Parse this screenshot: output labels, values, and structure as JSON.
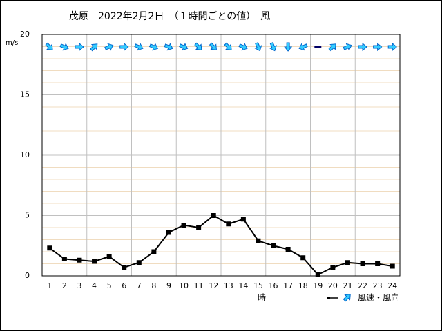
{
  "chart_data": {
    "type": "line",
    "title": "茂原　2022年2月2日　（１時間ごとの値）　風",
    "y_label": "m/s",
    "x_label": "時",
    "legend_label": "風速・風向",
    "categories": [
      "1",
      "2",
      "3",
      "4",
      "5",
      "6",
      "7",
      "8",
      "9",
      "10",
      "11",
      "12",
      "13",
      "14",
      "15",
      "16",
      "17",
      "18",
      "19",
      "20",
      "21",
      "22",
      "23",
      "24"
    ],
    "series": [
      {
        "name": "風速",
        "color": "#000000",
        "values": [
          2.3,
          1.4,
          1.3,
          1.2,
          1.6,
          0.7,
          1.1,
          2.0,
          3.6,
          4.2,
          4.0,
          5.0,
          4.3,
          4.7,
          2.9,
          2.5,
          2.2,
          1.5,
          0.1,
          0.7,
          1.1,
          1.0,
          1.0,
          0.8
        ]
      }
    ],
    "wind_direction_deg": [
      135,
      112.5,
      90,
      45,
      67.5,
      90,
      112.5,
      112.5,
      112.5,
      112.5,
      135,
      135,
      135,
      112.5,
      157.5,
      157.5,
      180,
      247.5,
      null,
      45,
      67.5,
      90,
      90,
      90
    ],
    "arrow_color": "#33ccff",
    "ylim": [
      0,
      20
    ],
    "yticks": [
      0,
      5,
      10,
      15,
      20
    ],
    "grid": true
  }
}
